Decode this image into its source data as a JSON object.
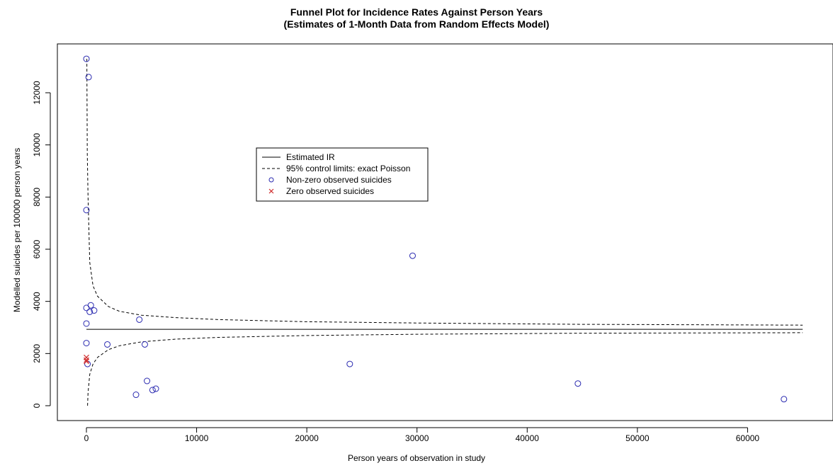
{
  "chart_data": {
    "type": "scatter",
    "title": "Funnel Plot for Incidence Rates Against Person Years",
    "subtitle": "(Estimates of 1-Month Data from Random Effects Model)",
    "xlabel": "Person years of observation in study",
    "ylabel": "Modelled suicides per 100000 person years",
    "xlim": [
      -2500,
      67000
    ],
    "ylim": [
      -500,
      13700
    ],
    "x_ticks": [
      0,
      10000,
      20000,
      30000,
      40000,
      50000,
      60000
    ],
    "x_tick_labels": [
      "0",
      "10000",
      "20000",
      "30000",
      "40000",
      "50000",
      "60000"
    ],
    "y_ticks": [
      0,
      2000,
      4000,
      6000,
      8000,
      10000,
      12000
    ],
    "y_tick_labels": [
      "0",
      "2000",
      "4000",
      "6000",
      "8000",
      "10000",
      "12000"
    ],
    "grid": false,
    "legend": {
      "placement": "center-left",
      "entries": [
        {
          "label": "Estimated IR",
          "style": "solid-line"
        },
        {
          "label": "95% control limits: exact Poisson",
          "style": "dashed-line"
        },
        {
          "label": "Non-zero observed suicides",
          "style": "blue-circle"
        },
        {
          "label": "Zero observed suicides",
          "style": "red-cross"
        }
      ]
    },
    "estimated_ir": 2930,
    "estimated_ir_x_range": [
      0,
      65000
    ],
    "control_limits": {
      "upper": [
        [
          40,
          13300
        ],
        [
          80,
          9700
        ],
        [
          150,
          8000
        ],
        [
          300,
          5500
        ],
        [
          600,
          4600
        ],
        [
          1000,
          4200
        ],
        [
          2000,
          3800
        ],
        [
          3000,
          3620
        ],
        [
          5000,
          3470
        ],
        [
          8000,
          3380
        ],
        [
          12000,
          3300
        ],
        [
          20000,
          3220
        ],
        [
          30000,
          3170
        ],
        [
          45000,
          3120
        ],
        [
          65000,
          3090
        ]
      ],
      "lower": [
        [
          100,
          0
        ],
        [
          150,
          500
        ],
        [
          300,
          1200
        ],
        [
          600,
          1600
        ],
        [
          1000,
          1850
        ],
        [
          2000,
          2150
        ],
        [
          3000,
          2300
        ],
        [
          5000,
          2450
        ],
        [
          8000,
          2550
        ],
        [
          12000,
          2620
        ],
        [
          20000,
          2690
        ],
        [
          30000,
          2740
        ],
        [
          45000,
          2780
        ],
        [
          65000,
          2800
        ]
      ]
    },
    "series": [
      {
        "name": "Non-zero observed suicides",
        "points": [
          [
            0,
            13300
          ],
          [
            200,
            12600
          ],
          [
            0,
            7500
          ],
          [
            0,
            3750
          ],
          [
            400,
            3850
          ],
          [
            300,
            3600
          ],
          [
            700,
            3650
          ],
          [
            0,
            3150
          ],
          [
            0,
            2400
          ],
          [
            1900,
            2350
          ],
          [
            4800,
            3300
          ],
          [
            5300,
            2350
          ],
          [
            100,
            1600
          ],
          [
            5500,
            950
          ],
          [
            4500,
            420
          ],
          [
            6000,
            600
          ],
          [
            6300,
            650
          ],
          [
            23900,
            1600
          ],
          [
            29600,
            5750
          ],
          [
            44600,
            850
          ],
          [
            63300,
            250
          ]
        ]
      },
      {
        "name": "Zero observed suicides",
        "points": [
          [
            0,
            1850
          ],
          [
            0,
            1750
          ],
          [
            0,
            1700
          ]
        ]
      }
    ],
    "colors": {
      "nonzero": "#2a2ab0",
      "zero": "#d03030",
      "lines": "#000000"
    }
  }
}
